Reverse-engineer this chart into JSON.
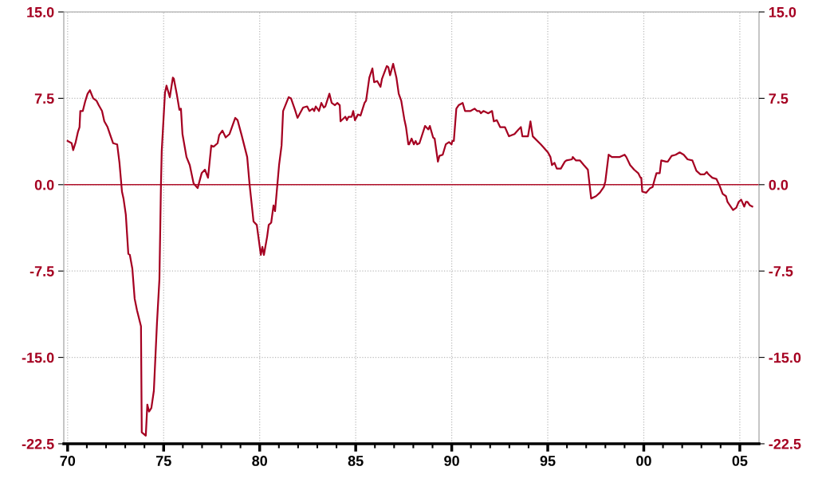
{
  "chart_data": {
    "type": "line",
    "xlim": [
      1969.8,
      2006.0
    ],
    "xticks": [
      {
        "value": 1970,
        "label": "70"
      },
      {
        "value": 1971,
        "label": null
      },
      {
        "value": 1972,
        "label": null
      },
      {
        "value": 1973,
        "label": null
      },
      {
        "value": 1974,
        "label": null
      },
      {
        "value": 1975,
        "label": "75"
      },
      {
        "value": 1976,
        "label": null
      },
      {
        "value": 1977,
        "label": null
      },
      {
        "value": 1978,
        "label": null
      },
      {
        "value": 1979,
        "label": null
      },
      {
        "value": 1980,
        "label": "80"
      },
      {
        "value": 1981,
        "label": null
      },
      {
        "value": 1982,
        "label": null
      },
      {
        "value": 1983,
        "label": null
      },
      {
        "value": 1984,
        "label": null
      },
      {
        "value": 1985,
        "label": "85"
      },
      {
        "value": 1986,
        "label": null
      },
      {
        "value": 1987,
        "label": null
      },
      {
        "value": 1988,
        "label": null
      },
      {
        "value": 1989,
        "label": null
      },
      {
        "value": 1990,
        "label": "90"
      },
      {
        "value": 1991,
        "label": null
      },
      {
        "value": 1992,
        "label": null
      },
      {
        "value": 1993,
        "label": null
      },
      {
        "value": 1994,
        "label": null
      },
      {
        "value": 1995,
        "label": "95"
      },
      {
        "value": 1996,
        "label": null
      },
      {
        "value": 1997,
        "label": null
      },
      {
        "value": 1998,
        "label": null
      },
      {
        "value": 1999,
        "label": null
      },
      {
        "value": 2000,
        "label": "00"
      },
      {
        "value": 2001,
        "label": null
      },
      {
        "value": 2002,
        "label": null
      },
      {
        "value": 2003,
        "label": null
      },
      {
        "value": 2004,
        "label": null
      },
      {
        "value": 2005,
        "label": "05"
      }
    ],
    "ylim": [
      -22.5,
      15.0
    ],
    "yticks": [
      {
        "value": -22.5,
        "label": "-22.5"
      },
      {
        "value": -15.0,
        "label": "-15.0"
      },
      {
        "value": -7.5,
        "label": "-7.5"
      },
      {
        "value": 0.0,
        "label": "0.0"
      },
      {
        "value": 7.5,
        "label": "7.5"
      },
      {
        "value": 15.0,
        "label": "15.0"
      }
    ],
    "y2lim": [
      -22.5,
      15.0
    ],
    "y2ticks": [
      {
        "value": -22.5,
        "label": "-22.5"
      },
      {
        "value": -15.0,
        "label": "-15.0"
      },
      {
        "value": -7.5,
        "label": "-7.5"
      },
      {
        "value": 0.0,
        "label": "0.0"
      },
      {
        "value": 7.5,
        "label": "7.5"
      },
      {
        "value": 15.0,
        "label": "15.0"
      }
    ],
    "grid": true,
    "line_style": "solid",
    "ref_lines": [
      {
        "axis": "y",
        "value": 0.0,
        "color": "#b0102a",
        "line_style": "solid"
      }
    ],
    "series": [
      {
        "color": "#a50021",
        "x": [
          1970.0,
          1970.21,
          1970.29,
          1970.42,
          1970.54,
          1970.62,
          1970.66,
          1970.79,
          1970.91,
          1971.04,
          1971.16,
          1971.33,
          1971.5,
          1971.62,
          1971.79,
          1971.91,
          1972.08,
          1972.2,
          1972.37,
          1972.58,
          1972.7,
          1972.83,
          1972.91,
          1973.03,
          1973.16,
          1973.24,
          1973.37,
          1973.49,
          1973.61,
          1973.82,
          1973.86,
          1974.07,
          1974.15,
          1974.24,
          1974.36,
          1974.49,
          1974.65,
          1974.78,
          1974.86,
          1974.9,
          1975.07,
          1975.15,
          1975.32,
          1975.48,
          1975.53,
          1975.69,
          1975.82,
          1975.9,
          1975.98,
          1976.19,
          1976.36,
          1976.56,
          1976.77,
          1976.98,
          1977.15,
          1977.31,
          1977.48,
          1977.6,
          1977.81,
          1977.89,
          1978.06,
          1978.23,
          1978.43,
          1978.6,
          1978.73,
          1978.85,
          1979.06,
          1979.35,
          1979.47,
          1979.68,
          1979.85,
          1980.06,
          1980.14,
          1980.22,
          1980.39,
          1980.47,
          1980.6,
          1980.72,
          1980.8,
          1981.01,
          1981.14,
          1981.22,
          1981.51,
          1981.63,
          1981.84,
          1981.97,
          1982.26,
          1982.47,
          1982.59,
          1982.76,
          1982.84,
          1982.92,
          1983.09,
          1983.21,
          1983.34,
          1983.42,
          1983.63,
          1983.75,
          1983.92,
          1984.04,
          1984.17,
          1984.21,
          1984.46,
          1984.54,
          1984.63,
          1984.79,
          1984.87,
          1984.96,
          1985.12,
          1985.25,
          1985.46,
          1985.54,
          1985.71,
          1985.87,
          1985.96,
          1986.12,
          1986.29,
          1986.37,
          1986.62,
          1986.7,
          1986.79,
          1986.95,
          1987.12,
          1987.24,
          1987.37,
          1987.53,
          1987.62,
          1987.74,
          1987.78,
          1987.91,
          1988.03,
          1988.12,
          1988.2,
          1988.32,
          1988.61,
          1988.78,
          1988.86,
          1989.03,
          1989.11,
          1989.28,
          1989.36,
          1989.53,
          1989.69,
          1989.86,
          1989.99,
          1990.03,
          1990.11,
          1990.24,
          1990.36,
          1990.57,
          1990.69,
          1990.98,
          1991.19,
          1991.32,
          1991.44,
          1991.52,
          1991.65,
          1991.9,
          1992.1,
          1992.19,
          1992.35,
          1992.52,
          1992.77,
          1992.98,
          1993.27,
          1993.48,
          1993.6,
          1993.68,
          1993.97,
          1994.1,
          1994.22,
          1994.64,
          1995.01,
          1995.14,
          1995.22,
          1995.35,
          1995.47,
          1995.68,
          1995.89,
          1995.97,
          1996.26,
          1996.3,
          1996.47,
          1996.68,
          1996.88,
          1997.09,
          1997.26,
          1997.51,
          1997.71,
          1997.92,
          1998.0,
          1998.17,
          1998.34,
          1998.55,
          1998.75,
          1999.0,
          1999.09,
          1999.29,
          1999.5,
          1999.71,
          1999.83,
          1999.87,
          1999.92,
          2000.12,
          2000.33,
          2000.46,
          2000.54,
          2000.66,
          2000.83,
          2000.91,
          2001.16,
          2001.25,
          2001.45,
          2001.66,
          2001.87,
          2002.08,
          2002.28,
          2002.53,
          2002.74,
          2002.95,
          2003.16,
          2003.28,
          2003.37,
          2003.57,
          2003.78,
          2003.95,
          2004.11,
          2004.28,
          2004.36,
          2004.65,
          2004.82,
          2004.94,
          2005.07,
          2005.23,
          2005.32,
          2005.4,
          2005.53,
          2005.65
        ],
        "values": [
          3.8,
          3.6,
          3.0,
          3.7,
          4.6,
          5.0,
          6.4,
          6.4,
          7.2,
          7.9,
          8.2,
          7.5,
          7.3,
          6.9,
          6.4,
          5.5,
          5.0,
          4.4,
          3.6,
          3.5,
          1.9,
          -0.6,
          -1.2,
          -2.6,
          -6.0,
          -6.1,
          -7.3,
          -9.9,
          -10.9,
          -12.3,
          -21.5,
          -21.8,
          -19.1,
          -19.7,
          -19.4,
          -17.9,
          -12.1,
          -8.2,
          0.0,
          2.9,
          8.0,
          8.6,
          7.6,
          9.3,
          9.2,
          7.8,
          6.5,
          6.6,
          4.4,
          2.4,
          1.7,
          0.1,
          -0.3,
          1.0,
          1.3,
          0.6,
          3.4,
          3.3,
          3.6,
          4.3,
          4.7,
          4.1,
          4.4,
          5.2,
          5.8,
          5.6,
          4.3,
          2.4,
          0.1,
          -3.2,
          -3.5,
          -6.1,
          -5.4,
          -6.1,
          -4.5,
          -3.5,
          -3.3,
          -1.8,
          -2.3,
          1.7,
          3.4,
          6.4,
          7.6,
          7.5,
          6.5,
          5.8,
          6.7,
          6.8,
          6.4,
          6.6,
          6.4,
          6.8,
          6.4,
          7.1,
          6.7,
          6.8,
          7.9,
          7.1,
          6.9,
          7.1,
          6.9,
          5.5,
          5.9,
          5.6,
          5.9,
          5.9,
          6.4,
          5.6,
          6.1,
          6.0,
          7.1,
          7.3,
          9.3,
          10.1,
          8.9,
          9.0,
          8.5,
          9.2,
          10.3,
          10.2,
          9.5,
          10.5,
          9.3,
          7.9,
          7.3,
          5.7,
          5.0,
          3.5,
          3.5,
          4.0,
          3.5,
          3.8,
          3.5,
          3.6,
          5.1,
          4.8,
          5.1,
          4.1,
          4.0,
          2.0,
          2.5,
          2.6,
          3.5,
          3.7,
          3.5,
          3.8,
          3.8,
          6.6,
          6.9,
          7.1,
          6.4,
          6.4,
          6.6,
          6.4,
          6.4,
          6.2,
          6.4,
          6.2,
          6.4,
          5.5,
          5.6,
          5.0,
          5.0,
          4.2,
          4.4,
          4.8,
          5.0,
          4.2,
          4.2,
          5.5,
          4.2,
          3.5,
          2.8,
          2.4,
          1.7,
          1.9,
          1.4,
          1.4,
          2.0,
          2.1,
          2.2,
          2.4,
          2.1,
          2.1,
          1.7,
          1.3,
          -1.2,
          -1.0,
          -0.7,
          -0.2,
          0.3,
          2.6,
          2.4,
          2.4,
          2.4,
          2.6,
          2.4,
          1.7,
          1.3,
          1.0,
          0.6,
          0.6,
          -0.6,
          -0.7,
          -0.3,
          -0.2,
          0.3,
          1.0,
          1.0,
          2.1,
          2.0,
          2.0,
          2.5,
          2.6,
          2.8,
          2.6,
          2.2,
          2.1,
          1.2,
          0.9,
          0.9,
          1.1,
          0.9,
          0.6,
          0.5,
          -0.1,
          -0.8,
          -1.0,
          -1.5,
          -2.2,
          -2.0,
          -1.5,
          -1.3,
          -1.9,
          -1.5,
          -1.5,
          -1.8,
          -1.9
        ]
      }
    ]
  }
}
